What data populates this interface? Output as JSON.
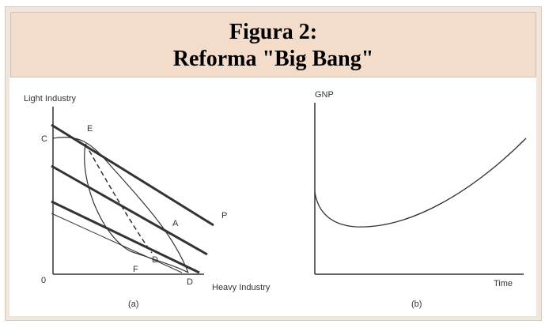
{
  "header": {
    "title_line1": "Figura 2:",
    "title_line2": "Reforma \"Big Bang\""
  },
  "panel_a": {
    "y_label": "Light Industry",
    "x_label": "Heavy Industry",
    "caption": "(a)",
    "points": {
      "c": "C",
      "e": "E",
      "p": "P",
      "a": "A",
      "f": "F",
      "d_inner": "D",
      "d": "D",
      "origin": "0"
    }
  },
  "panel_b": {
    "y_label": "GNP",
    "x_label": "Time",
    "caption": "(b)"
  }
}
